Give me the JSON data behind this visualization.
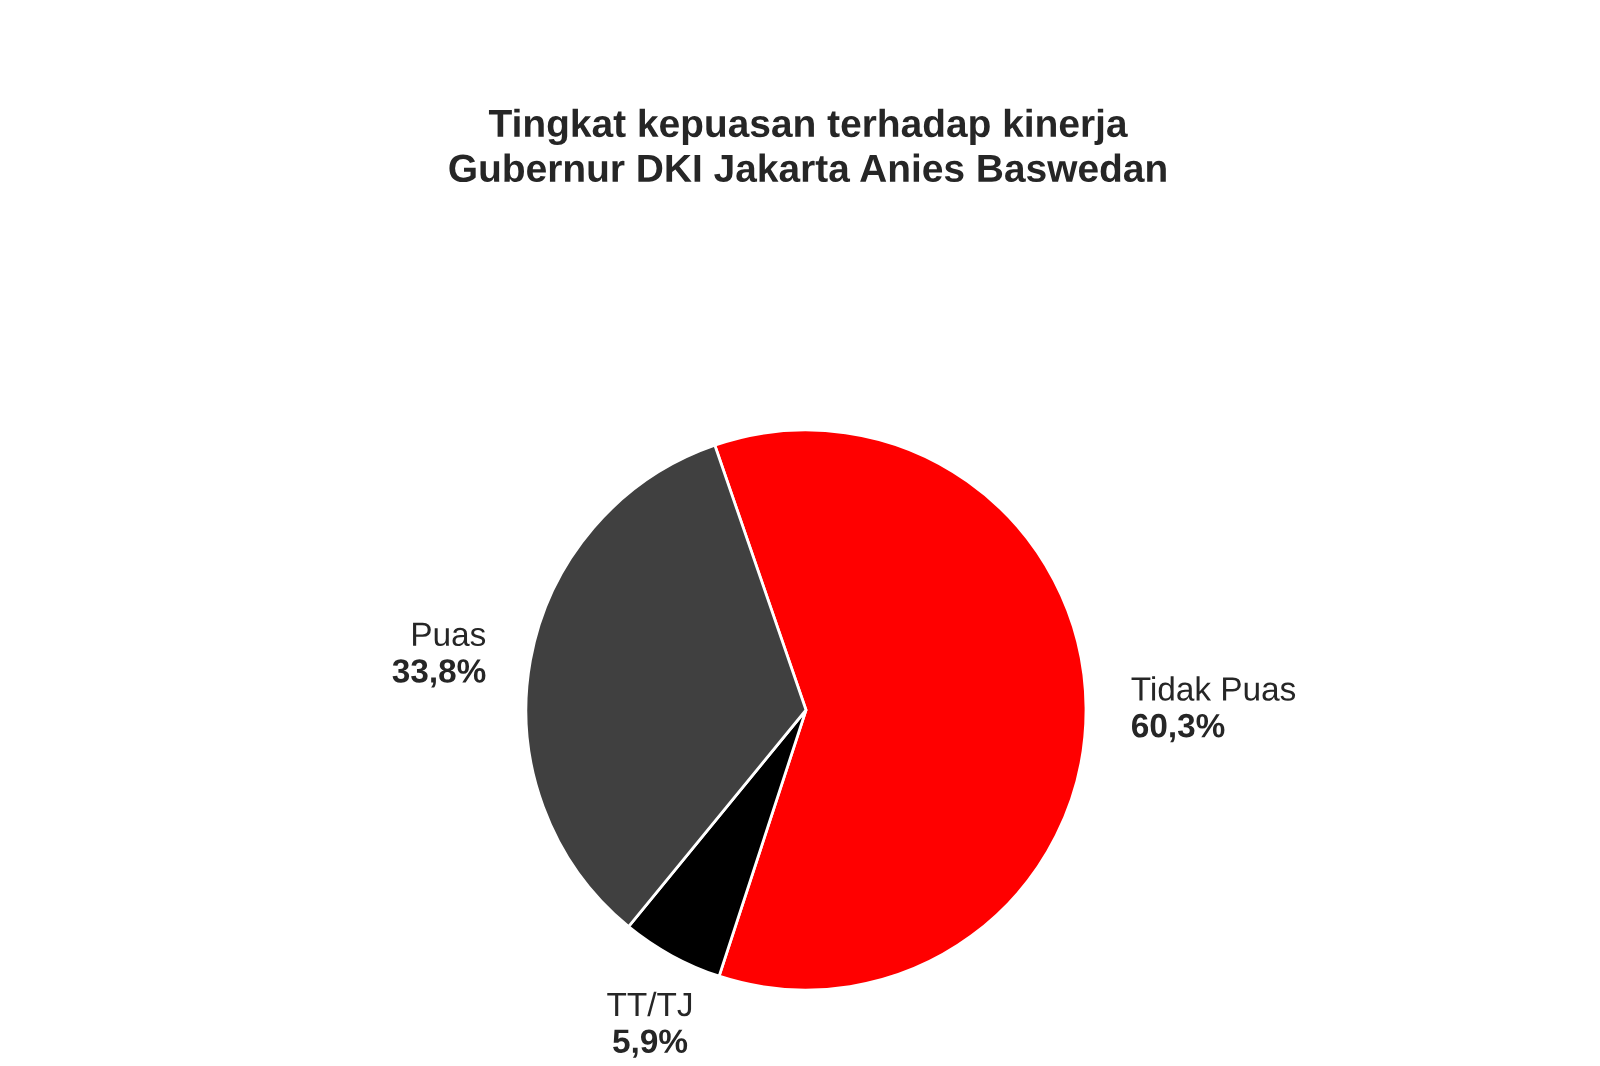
{
  "chart_data": {
    "type": "pie",
    "title": "Tingkat kepuasan terhadap kinerja\nGubernur DKI Jakarta Anies Baswedan",
    "categories": [
      "Tidak Puas",
      "TT/TJ",
      "Puas"
    ],
    "values": [
      60.3,
      5.9,
      33.8
    ],
    "colors": [
      "#ff0000",
      "#000000",
      "#404040"
    ],
    "value_labels": [
      "60,3%",
      "5,9%",
      "33,8%"
    ]
  }
}
